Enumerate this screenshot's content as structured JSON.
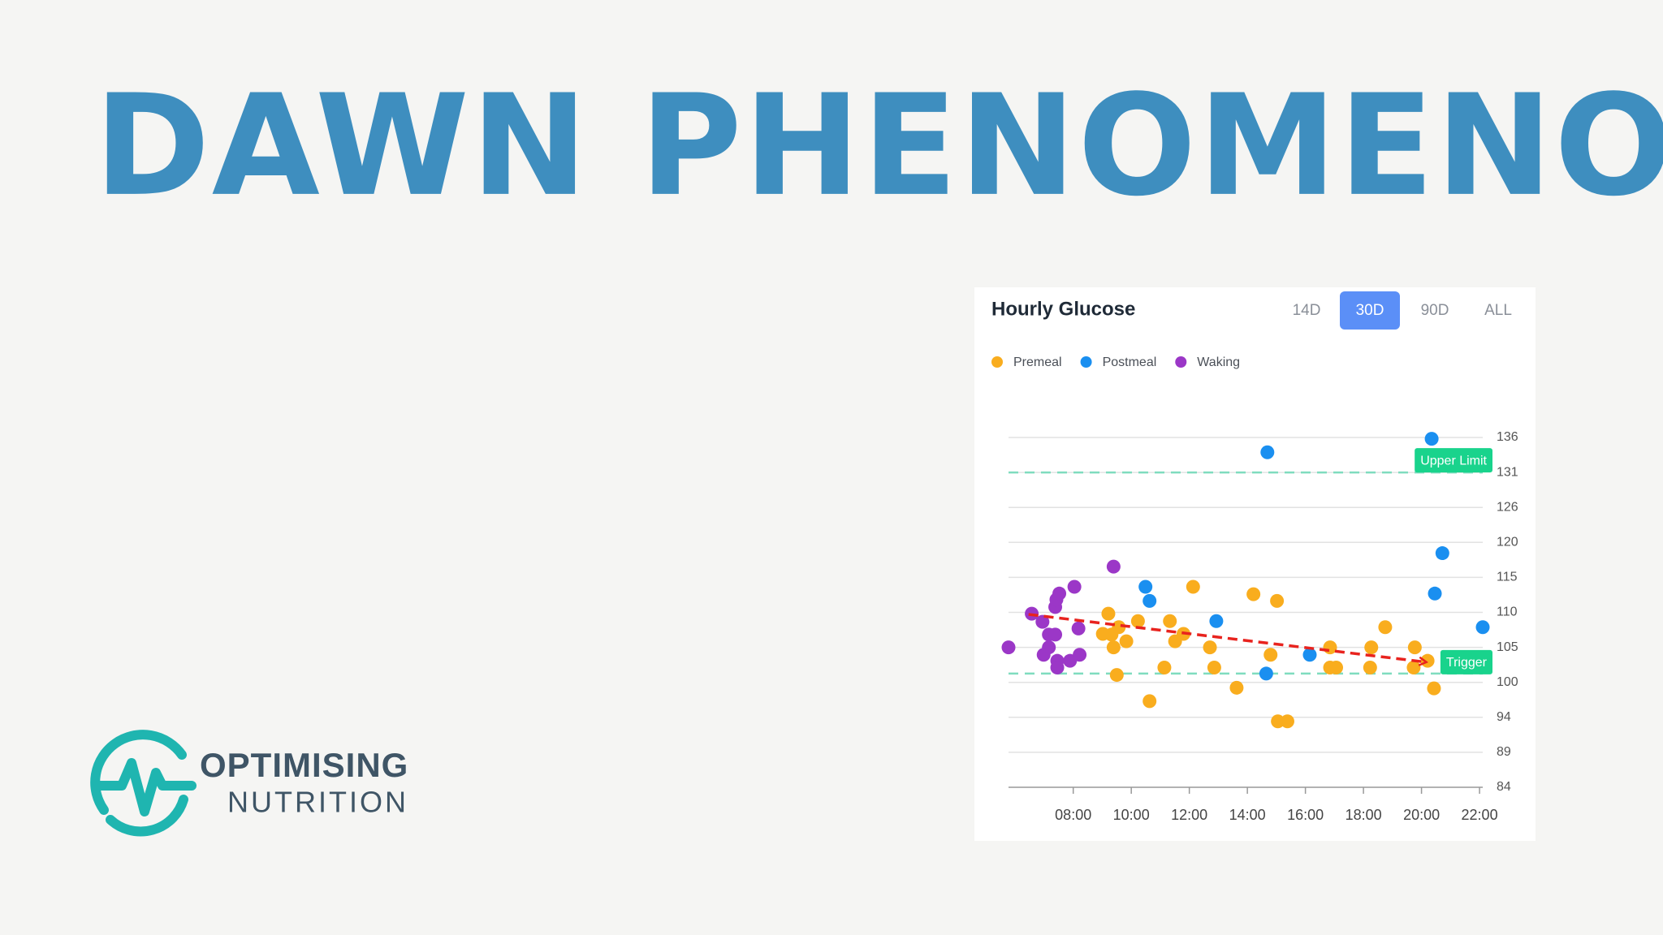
{
  "header": {
    "title": "DAWN PHENOMENON"
  },
  "logo": {
    "line1": "OPTIMISING",
    "line2": "NUTRITION"
  },
  "chart_data": {
    "type": "scatter",
    "title": "Hourly Glucose",
    "ranges": [
      "14D",
      "30D",
      "90D",
      "ALL"
    ],
    "active_range": 1,
    "xlim": [
      5.77,
      22.11
    ],
    "xticks": [
      {
        "value": 8,
        "label": "08:00"
      },
      {
        "value": 10,
        "label": "10:00"
      },
      {
        "value": 12,
        "label": "12:00"
      },
      {
        "value": 14,
        "label": "14:00"
      },
      {
        "value": 16,
        "label": "16:00"
      },
      {
        "value": 18,
        "label": "18:00"
      },
      {
        "value": 20,
        "label": "20:00"
      },
      {
        "value": 22,
        "label": "22:00"
      }
    ],
    "ylim": [
      84,
      136
    ],
    "yticks": [
      84,
      {
        "value": 89.2,
        "label": "89"
      },
      {
        "value": 94.4,
        "label": "94"
      },
      {
        "value": 99.6,
        "label": "100"
      },
      {
        "value": 104.8,
        "label": "105"
      },
      110,
      {
        "value": 115.2,
        "label": "115"
      },
      {
        "value": 120.4,
        "label": "120"
      },
      {
        "value": 125.6,
        "label": "126"
      },
      {
        "value": 130.8,
        "label": "131"
      },
      136
    ],
    "grid": true,
    "legend": "top-left",
    "series": [
      {
        "name": "Premeal",
        "color": "#f9ad1e",
        "x": [
          9.21,
          9.57,
          9.02,
          9.32,
          9.39,
          9.83,
          10.23,
          9.5,
          10.63,
          11.14,
          11.33,
          11.51,
          11.8,
          12.13,
          12.71,
          12.86,
          13.63,
          14.21,
          14.8,
          15.02,
          15.05,
          15.38,
          16.85,
          16.85,
          17.06,
          18.27,
          18.23,
          18.75,
          19.77,
          19.73,
          20.21,
          20.43
        ],
        "values": [
          109.8,
          107.8,
          106.8,
          106.7,
          104.8,
          105.7,
          108.7,
          100.7,
          96.8,
          101.8,
          108.7,
          105.7,
          106.8,
          113.8,
          104.8,
          101.8,
          98.8,
          112.7,
          103.7,
          111.7,
          93.8,
          93.8,
          104.8,
          101.8,
          101.8,
          104.8,
          101.8,
          107.8,
          104.8,
          101.8,
          102.8,
          98.7
        ]
      },
      {
        "name": "Postmeal",
        "color": "#1a8ff0",
        "x": [
          20.35,
          14.69,
          20.72,
          20.46,
          22.11,
          10.49,
          10.63,
          12.93,
          16.15,
          14.65
        ],
        "values": [
          135.8,
          133.8,
          118.8,
          112.8,
          107.8,
          113.8,
          111.7,
          108.7,
          103.7,
          100.9
        ]
      },
      {
        "name": "Waking",
        "color": "#9b37c7",
        "x": [
          5.77,
          6.57,
          6.94,
          7.16,
          6.98,
          7.16,
          7.38,
          7.38,
          7.42,
          7.52,
          8.04,
          7.45,
          7.45,
          7.89,
          8.22,
          8.18,
          9.39
        ],
        "values": [
          104.8,
          109.8,
          108.6,
          106.7,
          103.7,
          104.8,
          106.7,
          110.8,
          111.9,
          112.8,
          113.8,
          102.8,
          101.8,
          102.8,
          103.7,
          107.6,
          116.8
        ]
      }
    ],
    "reference_lines": [
      {
        "label": "Upper Limit",
        "value": 130.8,
        "color": "#19d38c"
      },
      {
        "label": "Trigger",
        "value": 100.9,
        "color": "#19d38c"
      }
    ],
    "trend": {
      "x": [
        6.46,
        20.17
      ],
      "values": [
        109.7,
        102.6
      ],
      "color": "#e8231e"
    }
  }
}
